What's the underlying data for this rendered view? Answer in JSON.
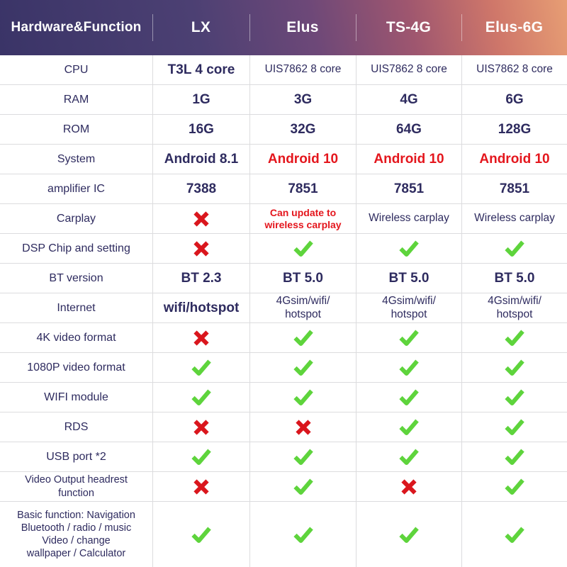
{
  "header": {
    "feature_col": "Hardware&Function",
    "models": [
      "LX",
      "Elus",
      "TS-4G",
      "Elus-6G"
    ]
  },
  "colors": {
    "header_gradient_left": "#3a3467",
    "header_gradient_mid": "#6d4878",
    "header_gradient_right": "#e79e74",
    "text_navy": "#2e2b5f",
    "highlight_red": "#e4161d",
    "check_green": "#5ed43c",
    "grid_border": "#dcdcde"
  },
  "icons": {
    "check": "check-icon",
    "cross": "cross-icon"
  },
  "rows": [
    {
      "label": "CPU",
      "cells": [
        {
          "type": "text",
          "value": "T3L 4 core"
        },
        {
          "type": "text",
          "value": "UIS7862 8 core",
          "size": "sm"
        },
        {
          "type": "text",
          "value": "UIS7862 8 core",
          "size": "sm"
        },
        {
          "type": "text",
          "value": "UIS7862 8 core",
          "size": "sm"
        }
      ]
    },
    {
      "label": "RAM",
      "cells": [
        {
          "type": "text",
          "value": "1G"
        },
        {
          "type": "text",
          "value": "3G"
        },
        {
          "type": "text",
          "value": "4G"
        },
        {
          "type": "text",
          "value": "6G"
        }
      ]
    },
    {
      "label": "ROM",
      "cells": [
        {
          "type": "text",
          "value": "16G"
        },
        {
          "type": "text",
          "value": "32G"
        },
        {
          "type": "text",
          "value": "64G"
        },
        {
          "type": "text",
          "value": "128G"
        }
      ]
    },
    {
      "label": "System",
      "cells": [
        {
          "type": "text",
          "value": "Android 8.1"
        },
        {
          "type": "text",
          "value": "Android 10",
          "color": "red"
        },
        {
          "type": "text",
          "value": "Android 10",
          "color": "red"
        },
        {
          "type": "text",
          "value": "Android 10",
          "color": "red"
        }
      ]
    },
    {
      "label": "amplifier IC",
      "cells": [
        {
          "type": "text",
          "value": "7388"
        },
        {
          "type": "text",
          "value": "7851"
        },
        {
          "type": "text",
          "value": "7851"
        },
        {
          "type": "text",
          "value": "7851"
        }
      ]
    },
    {
      "label": "Carplay",
      "cells": [
        {
          "type": "cross"
        },
        {
          "type": "text",
          "value": "Can update to\nwireless carplay",
          "color": "red",
          "size": "xs"
        },
        {
          "type": "text",
          "value": "Wireless carplay",
          "size": "sm"
        },
        {
          "type": "text",
          "value": "Wireless carplay",
          "size": "sm"
        }
      ]
    },
    {
      "label": "DSP Chip and setting",
      "cells": [
        {
          "type": "cross"
        },
        {
          "type": "check"
        },
        {
          "type": "check"
        },
        {
          "type": "check"
        }
      ]
    },
    {
      "label": "BT version",
      "cells": [
        {
          "type": "text",
          "value": "BT 2.3"
        },
        {
          "type": "text",
          "value": "BT 5.0"
        },
        {
          "type": "text",
          "value": "BT 5.0"
        },
        {
          "type": "text",
          "value": "BT 5.0"
        }
      ]
    },
    {
      "label": "Internet",
      "cells": [
        {
          "type": "text",
          "value": "wifi/hotspot"
        },
        {
          "type": "text",
          "value": "4Gsim/wifi/\nhotspot",
          "size": "sm"
        },
        {
          "type": "text",
          "value": "4Gsim/wifi/\nhotspot",
          "size": "sm"
        },
        {
          "type": "text",
          "value": "4Gsim/wifi/\nhotspot",
          "size": "sm"
        }
      ]
    },
    {
      "label": "4K video format",
      "cells": [
        {
          "type": "cross"
        },
        {
          "type": "check"
        },
        {
          "type": "check"
        },
        {
          "type": "check"
        }
      ]
    },
    {
      "label": "1080P video format",
      "cells": [
        {
          "type": "check"
        },
        {
          "type": "check"
        },
        {
          "type": "check"
        },
        {
          "type": "check"
        }
      ]
    },
    {
      "label": "WIFI module",
      "cells": [
        {
          "type": "check"
        },
        {
          "type": "check"
        },
        {
          "type": "check"
        },
        {
          "type": "check"
        }
      ]
    },
    {
      "label": "RDS",
      "cells": [
        {
          "type": "cross"
        },
        {
          "type": "cross"
        },
        {
          "type": "check"
        },
        {
          "type": "check"
        }
      ]
    },
    {
      "label": "USB port *2",
      "cells": [
        {
          "type": "check"
        },
        {
          "type": "check"
        },
        {
          "type": "check"
        },
        {
          "type": "check"
        }
      ]
    },
    {
      "label": "Video Output headrest\nfunction",
      "label_small": true,
      "cells": [
        {
          "type": "cross"
        },
        {
          "type": "check"
        },
        {
          "type": "cross"
        },
        {
          "type": "check"
        }
      ]
    },
    {
      "label": "Basic function: Navigation\nBluetooth / radio / music\nVideo / change\nwallpaper / Calculator",
      "label_small": true,
      "tall": true,
      "cells": [
        {
          "type": "check"
        },
        {
          "type": "check"
        },
        {
          "type": "check"
        },
        {
          "type": "check"
        }
      ]
    }
  ]
}
